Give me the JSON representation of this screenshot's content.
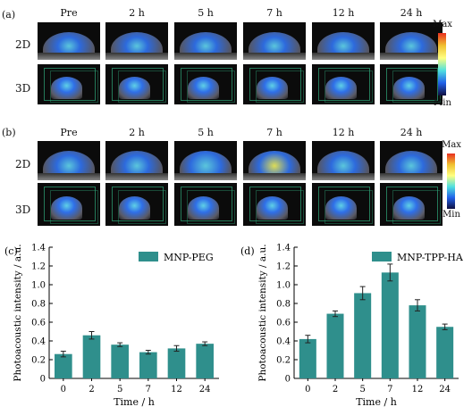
{
  "panels": {
    "a": {
      "label": "(a)",
      "timepoints": [
        "Pre",
        "2 h",
        "5 h",
        "7 h",
        "12 h",
        "24 h"
      ],
      "rows": [
        "2D",
        "3D"
      ],
      "colorbar": {
        "max": "Max",
        "min": "Min"
      }
    },
    "b": {
      "label": "(b)",
      "timepoints": [
        "Pre",
        "2 h",
        "5 h",
        "7 h",
        "12 h",
        "24 h"
      ],
      "rows": [
        "2D",
        "3D"
      ],
      "colorbar": {
        "max": "Max",
        "min": "Min"
      }
    }
  },
  "colors": {
    "bar": "#2f8f8c",
    "image_bg": "#0b0b0b",
    "tissue": "#5a5a66",
    "signal_blue": "#2f6fe8",
    "signal_cyan": "#5fd0e6",
    "signal_yellow": "#e8e85a",
    "box_edge": "#2fa87a"
  },
  "chart_data": [
    {
      "panel": "(c)",
      "type": "bar",
      "categories": [
        "0",
        "2",
        "5",
        "7",
        "12",
        "24"
      ],
      "series": [
        {
          "name": "MNP-PEG",
          "values": [
            0.26,
            0.46,
            0.36,
            0.28,
            0.32,
            0.37
          ],
          "errors": [
            0.03,
            0.04,
            0.02,
            0.02,
            0.03,
            0.02
          ]
        }
      ],
      "xlabel": "Time / h",
      "ylabel": "Photoacoustic intensity / a.u.",
      "ylim": [
        0,
        1.4
      ],
      "yticks": [
        "0",
        "0.2",
        "0.4",
        "0.6",
        "0.8",
        "1.0",
        "1.2",
        "1.4"
      ],
      "legend": "top-right"
    },
    {
      "panel": "(d)",
      "type": "bar",
      "categories": [
        "0",
        "2",
        "5",
        "7",
        "12",
        "24"
      ],
      "series": [
        {
          "name": "MNP-TPP-HA",
          "values": [
            0.42,
            0.69,
            0.91,
            1.13,
            0.78,
            0.55
          ],
          "errors": [
            0.04,
            0.03,
            0.07,
            0.09,
            0.06,
            0.03
          ]
        }
      ],
      "xlabel": "Time / h",
      "ylabel": "Photoacoustic intensity / a.u.",
      "ylim": [
        0,
        1.4
      ],
      "yticks": [
        "0",
        "0.2",
        "0.4",
        "0.6",
        "0.8",
        "1.0",
        "1.2",
        "1.4"
      ],
      "legend": "top-center"
    }
  ]
}
